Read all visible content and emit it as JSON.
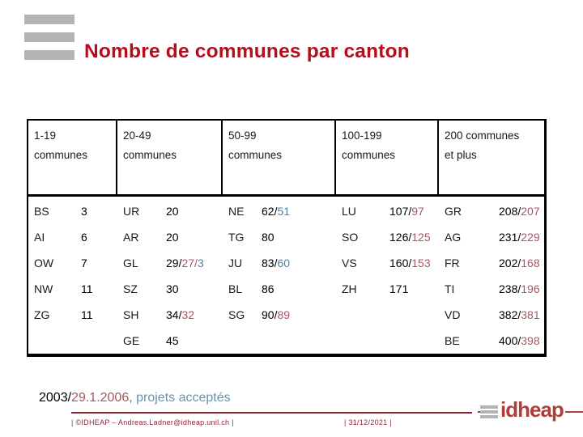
{
  "slide": {
    "title": "Nombre de communes par canton"
  },
  "table": {
    "headers": [
      {
        "line1": "1-19",
        "line2": "communes"
      },
      {
        "line1": "20-49",
        "line2": "communes"
      },
      {
        "line1": "50-99",
        "line2": "communes"
      },
      {
        "line1": "100-199",
        "line2": "communes"
      },
      {
        "line1": "200 communes",
        "line2": "et plus"
      }
    ],
    "rows": [
      [
        {
          "code": "BS",
          "value": [
            {
              "t": "3",
              "c": "black"
            }
          ]
        },
        {
          "code": "UR",
          "value": [
            {
              "t": "20",
              "c": "black"
            }
          ]
        },
        {
          "code": "NE",
          "value": [
            {
              "t": "62/",
              "c": "black"
            },
            {
              "t": "51",
              "c": "blue"
            }
          ]
        },
        {
          "code": "LU",
          "value": [
            {
              "t": "107/",
              "c": "black"
            },
            {
              "t": "97",
              "c": "red"
            }
          ]
        },
        {
          "code": "GR",
          "value": [
            {
              "t": "208/",
              "c": "black"
            },
            {
              "t": "207",
              "c": "red"
            }
          ]
        }
      ],
      [
        {
          "code": "AI",
          "value": [
            {
              "t": "6",
              "c": "black"
            }
          ]
        },
        {
          "code": "AR",
          "value": [
            {
              "t": "20",
              "c": "black"
            }
          ]
        },
        {
          "code": "TG",
          "value": [
            {
              "t": "80",
              "c": "black"
            }
          ]
        },
        {
          "code": "SO",
          "value": [
            {
              "t": "126/",
              "c": "black"
            },
            {
              "t": "125",
              "c": "red"
            }
          ]
        },
        {
          "code": "AG",
          "value": [
            {
              "t": "231/",
              "c": "black"
            },
            {
              "t": "229",
              "c": "red"
            }
          ]
        }
      ],
      [
        {
          "code": "OW",
          "value": [
            {
              "t": "7",
              "c": "black"
            }
          ]
        },
        {
          "code": "GL",
          "value": [
            {
              "t": "29/",
              "c": "black"
            },
            {
              "t": "27/",
              "c": "red"
            },
            {
              "t": "3",
              "c": "blue"
            }
          ]
        },
        {
          "code": "JU",
          "value": [
            {
              "t": "83/",
              "c": "black"
            },
            {
              "t": "60",
              "c": "blue"
            }
          ]
        },
        {
          "code": "VS",
          "value": [
            {
              "t": "160/",
              "c": "black"
            },
            {
              "t": "153",
              "c": "red"
            }
          ]
        },
        {
          "code": "FR",
          "value": [
            {
              "t": "202/",
              "c": "black"
            },
            {
              "t": "168",
              "c": "red"
            }
          ]
        }
      ],
      [
        {
          "code": "NW",
          "value": [
            {
              "t": "11",
              "c": "black"
            }
          ]
        },
        {
          "code": "SZ",
          "value": [
            {
              "t": "30",
              "c": "black"
            }
          ]
        },
        {
          "code": "BL",
          "value": [
            {
              "t": "86",
              "c": "black"
            }
          ]
        },
        {
          "code": "ZH",
          "value": [
            {
              "t": "171",
              "c": "black"
            }
          ]
        },
        {
          "code": "TI",
          "value": [
            {
              "t": "238/",
              "c": "black"
            },
            {
              "t": "196",
              "c": "red"
            }
          ]
        }
      ],
      [
        {
          "code": "ZG",
          "value": [
            {
              "t": "11",
              "c": "black"
            }
          ]
        },
        {
          "code": "SH",
          "value": [
            {
              "t": "34/",
              "c": "black"
            },
            {
              "t": "32",
              "c": "red"
            }
          ]
        },
        {
          "code": "SG",
          "value": [
            {
              "t": "90/",
              "c": "black"
            },
            {
              "t": "89",
              "c": "red"
            }
          ]
        },
        null,
        {
          "code": "VD",
          "value": [
            {
              "t": "382/",
              "c": "black"
            },
            {
              "t": "381",
              "c": "red"
            }
          ]
        }
      ],
      [
        null,
        {
          "code": "GE",
          "value": [
            {
              "t": "45",
              "c": "black"
            }
          ]
        },
        null,
        null,
        {
          "code": "BE",
          "value": [
            {
              "t": "400/",
              "c": "black"
            },
            {
              "t": "398",
              "c": "red"
            }
          ]
        }
      ]
    ]
  },
  "footnote": {
    "segments": [
      {
        "t": "2003/",
        "c": "black"
      },
      {
        "t": "29.1.2006",
        "c": "red"
      },
      {
        "t": ", ",
        "c": "red"
      },
      {
        "t": "projets acceptés",
        "c": "fblue"
      }
    ]
  },
  "bottombar": {
    "left": "| ©IDHEAP – Andreas.Ladner@idheap.unil.ch |",
    "right": "| 31/12/2021 |"
  },
  "logo": {
    "text": "idheap"
  },
  "colors": {
    "title_red": "#b30d1e",
    "value_red": "#a85760",
    "value_blue": "#4e82a2",
    "footer_blue": "#6594ad",
    "bar_red": "#8e2433",
    "logo_red": "#ad3f3b",
    "gray_bar": "#b3b3b6"
  }
}
